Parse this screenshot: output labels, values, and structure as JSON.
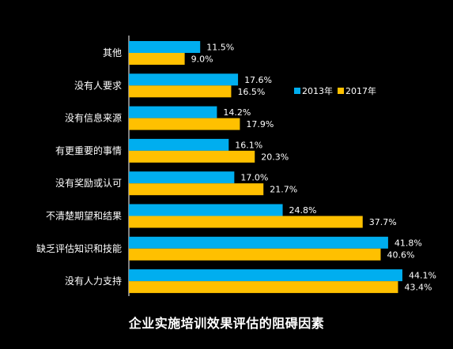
{
  "chart_data": {
    "type": "bar",
    "orientation": "horizontal",
    "title": "企业实施培训效果评估的阻碍因素",
    "categories": [
      "其他",
      "没有人要求",
      "没有信息来源",
      "有更重要的事情",
      "没有奖励或认可",
      "不清楚期望和结果",
      "缺乏评估知识和技能",
      "没有人力支持"
    ],
    "series": [
      {
        "name": "2013年",
        "color": "#00AEEF",
        "values": [
          11.5,
          17.6,
          14.2,
          16.1,
          17.0,
          24.8,
          41.8,
          44.1
        ],
        "labels": [
          "11.5%",
          "17.6%",
          "14.2%",
          "16.1%",
          "17.0%",
          "24.8%",
          "41.8%",
          "44.1%"
        ]
      },
      {
        "name": "2017年",
        "color": "#FFC000",
        "values": [
          9.0,
          16.5,
          17.9,
          20.3,
          21.7,
          37.7,
          40.6,
          43.4
        ],
        "labels": [
          "9.0%",
          "16.5%",
          "17.9%",
          "20.3%",
          "21.7%",
          "37.7%",
          "40.6%",
          "43.4%"
        ]
      }
    ],
    "legend_position": "top-right",
    "grid": false
  }
}
